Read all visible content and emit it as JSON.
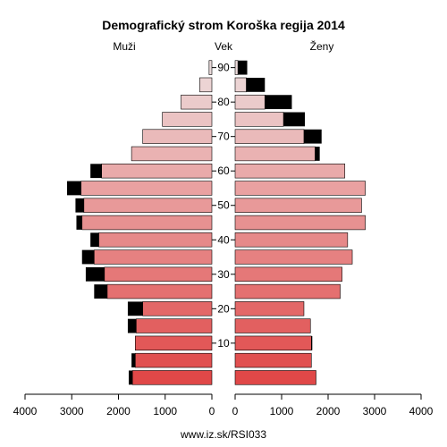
{
  "chart_data": {
    "type": "bar",
    "title": "Demografický strom Koroška regija 2014",
    "left_label": "Muži",
    "center_label": "Vek",
    "right_label": "Ženy",
    "footer": "www.iz.sk/RSI033",
    "age_ticks": [
      10,
      20,
      30,
      40,
      50,
      60,
      70,
      80,
      90
    ],
    "x_ticks_left": [
      "4000",
      "3000",
      "2000",
      "1000",
      "0"
    ],
    "x_ticks_right": [
      "0",
      "1000",
      "2000",
      "3000",
      "4000"
    ],
    "xlim": [
      0,
      4000
    ],
    "age_groups": [
      "0-4",
      "5-9",
      "10-14",
      "15-19",
      "20-24",
      "25-29",
      "30-34",
      "35-39",
      "40-44",
      "45-49",
      "50-54",
      "55-59",
      "60-64",
      "65-69",
      "70-74",
      "75-79",
      "80-84",
      "85-89",
      "90+"
    ],
    "series": [
      {
        "name": "Muži",
        "values": [
          1700,
          1640,
          1640,
          1620,
          1480,
          2240,
          2300,
          2520,
          2420,
          2780,
          2740,
          2800,
          2360,
          1720,
          1480,
          1060,
          660,
          260,
          60
        ],
        "excess": [
          80,
          80,
          0,
          180,
          320,
          280,
          400,
          260,
          180,
          120,
          180,
          300,
          240,
          0,
          0,
          0,
          0,
          0,
          0
        ]
      },
      {
        "name": "Ženy",
        "values": [
          1740,
          1640,
          1640,
          1620,
          1480,
          2260,
          2300,
          2520,
          2420,
          2800,
          2720,
          2800,
          2360,
          1720,
          1480,
          1040,
          640,
          240,
          60
        ],
        "excess": [
          0,
          0,
          20,
          0,
          0,
          0,
          0,
          0,
          0,
          0,
          0,
          0,
          0,
          100,
          380,
          460,
          580,
          400,
          200
        ]
      }
    ],
    "colors": {
      "young": "#e04848",
      "mid": "#e89898",
      "old": "#ecdcdc",
      "excess": "#000000"
    }
  }
}
